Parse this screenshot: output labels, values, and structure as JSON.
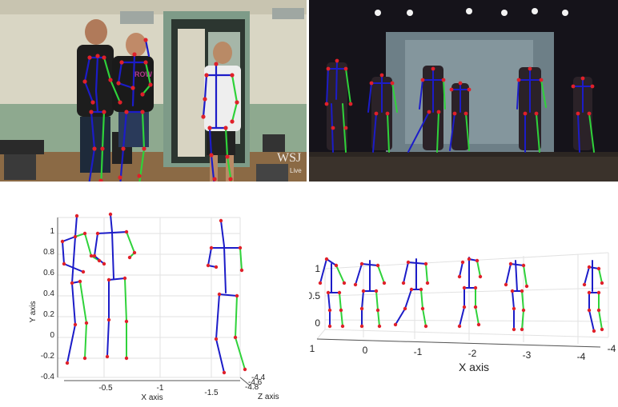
{
  "colors": {
    "left_limb": "#1c1cc8",
    "right_limb": "#2fd23a",
    "joint": "#e0202a",
    "grid": "#e2e2e2",
    "axis": "#555555"
  },
  "photo_left": {
    "shirt_text": "ROW",
    "watermark": "WSJ",
    "watermark_sub": "Live"
  },
  "photo_right": {},
  "plot_left": {
    "y_axis_label": "Y axis",
    "x_axis_label": "X axis",
    "z_axis_label": "Z axis",
    "y_ticks": [
      "1",
      "0.8",
      "0.6",
      "0.4",
      "0.2",
      "0",
      "-0.2",
      "-0.4"
    ],
    "x_ticks": [
      "-0.5",
      "-1",
      "-1.5"
    ],
    "z_ticks": [
      "-4.4",
      "-4.6",
      "-4.8"
    ]
  },
  "plot_right": {
    "x_axis_label": "X axis",
    "y_ticks": [
      "1",
      "0.5",
      "0"
    ],
    "x_ticks": [
      "1",
      "0",
      "-1",
      "-2",
      "-3",
      "-4"
    ],
    "z_tick": "-4"
  }
}
